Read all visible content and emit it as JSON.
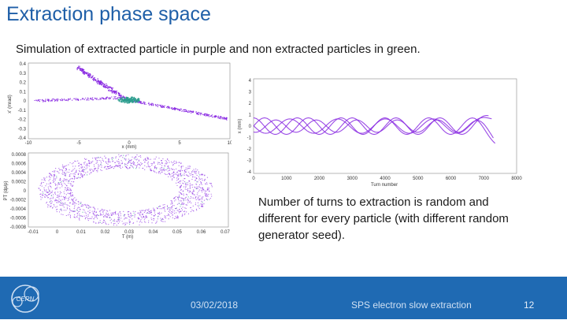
{
  "slide": {
    "title": "Extraction phase space",
    "subtitle": "Simulation of extracted particle in purple and non extracted particles in green.",
    "note": "Number of turns to extraction is random and different for every particle (with different random generator seed)."
  },
  "plots": {
    "top_left": {
      "ylabel": "x' (mrad)",
      "xlabel": "x (mm)",
      "yticks": [
        "0.4",
        "0.3",
        "0.2",
        "0.1",
        "0",
        "-0.1",
        "-0.2",
        "-0.3",
        "-0.4"
      ],
      "xticks": [
        "-10",
        "-5",
        "0",
        "5",
        "10"
      ]
    },
    "bottom_left": {
      "ylabel": "PT (dp/p)",
      "xlabel": "T (m)",
      "yticks": [
        "0.0008",
        "0.0006",
        "0.0004",
        "0.0002",
        "0",
        "-0.0002",
        "-0.0004",
        "-0.0006",
        "-0.0008"
      ],
      "xticks": [
        "-0.01",
        "0",
        "0.01",
        "0.02",
        "0.03",
        "0.04",
        "0.05",
        "0.06",
        "0.07"
      ]
    },
    "right": {
      "ylabel": "x (mm)",
      "xlabel": "Turn number",
      "yticks": [
        "4",
        "3",
        "2",
        "1",
        "0",
        "-1",
        "-2",
        "-3",
        "-4"
      ],
      "xticks": [
        "0",
        "1000",
        "2000",
        "3000",
        "4000",
        "5000",
        "6000",
        "7000",
        "8000"
      ]
    }
  },
  "colors": {
    "purple": "#8a2be2",
    "green": "#2e9e8f",
    "brand_blue": "#1f6ab3"
  },
  "footer": {
    "logo_text": "CERN",
    "date": "03/02/2018",
    "center_text": "SPS electron slow extraction",
    "page": "12"
  }
}
